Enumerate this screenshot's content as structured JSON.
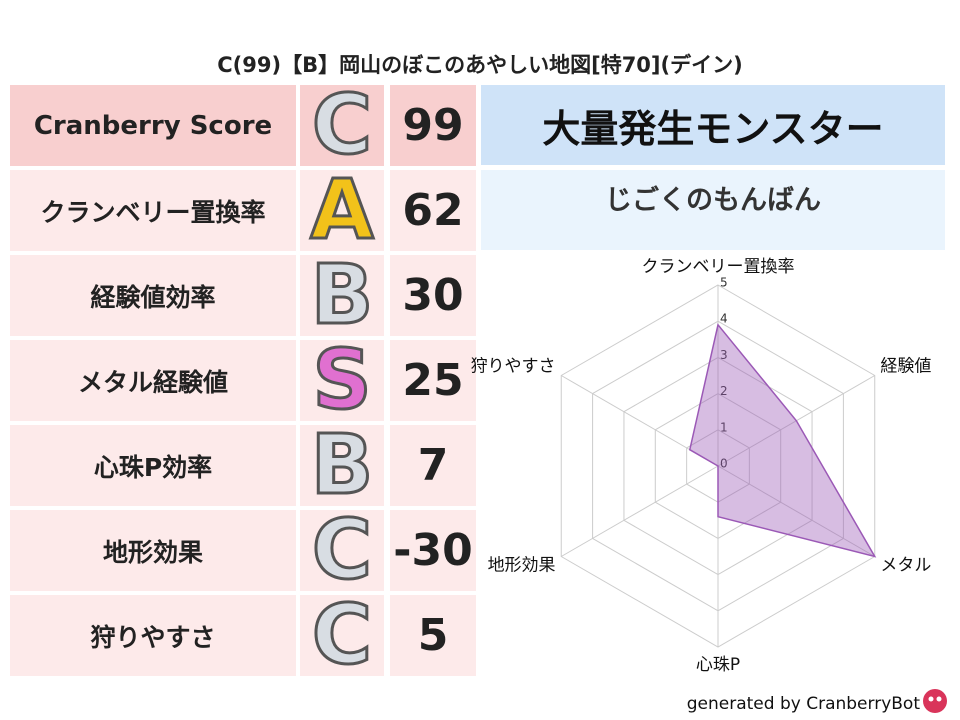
{
  "title": "C(99)【B】岡山のぼこのあやしい地図[特70](デイン)",
  "table": {
    "rows": [
      [
        "Cranberry Score",
        "C",
        99
      ],
      [
        "クランベリー置換率",
        "A",
        62
      ],
      [
        "経験値効率",
        "B",
        30
      ],
      [
        "メタル経験値",
        "S",
        25
      ],
      [
        "心珠P効率",
        "B",
        7
      ],
      [
        "地形効果",
        "C",
        -30
      ],
      [
        "狩りやすさ",
        "C",
        5
      ]
    ]
  },
  "side": {
    "header": "大量発生モンスター",
    "monster": "じごくのもんばん"
  },
  "chart_data": {
    "type": "radar",
    "categories": [
      "クランベリー置換率",
      "経験値",
      "メタル",
      "心珠P",
      "地形効果",
      "狩りやすさ"
    ],
    "values": [
      3.9,
      2.5,
      5,
      1.4,
      0,
      0.9
    ],
    "color": "#9b59b6",
    "rlim": [
      0,
      5
    ],
    "rticks": [
      0,
      1,
      2,
      3,
      4,
      5
    ],
    "grid": true
  },
  "footer": "generated by CranberryBot"
}
